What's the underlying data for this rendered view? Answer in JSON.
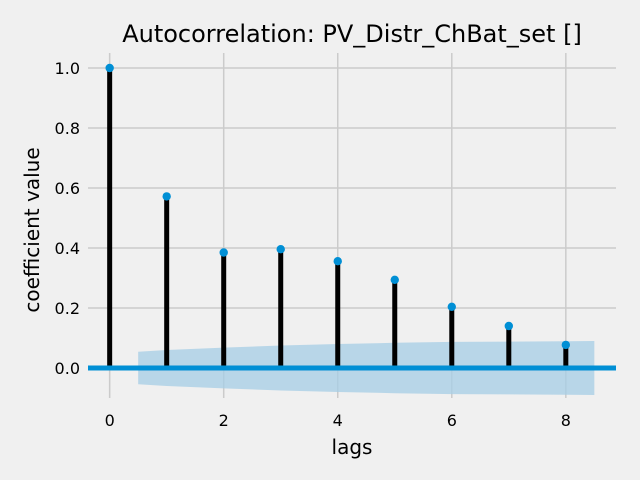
{
  "chart_data": {
    "type": "stem",
    "title": "Autocorrelation: PV_Distr_ChBat_set []",
    "xlabel": "lags",
    "ylabel": "coefficient value",
    "xlim": [
      -0.38,
      8.88
    ],
    "ylim": [
      -0.1,
      1.05
    ],
    "xticks": [
      0,
      2,
      4,
      6,
      8
    ],
    "xtick_labels": [
      "0",
      "2",
      "4",
      "6",
      "8"
    ],
    "yticks": [
      0.0,
      0.2,
      0.4,
      0.6,
      0.8,
      1.0
    ],
    "ytick_labels": [
      "0.0",
      "0.2",
      "0.4",
      "0.6",
      "0.8",
      "1.0"
    ],
    "grid": true,
    "lags": [
      0,
      1,
      2,
      3,
      4,
      5,
      6,
      7,
      8
    ],
    "values": [
      1.0,
      0.572,
      0.385,
      0.396,
      0.356,
      0.294,
      0.204,
      0.14,
      0.077
    ],
    "confidence_band": {
      "x": [
        0.5,
        1,
        2,
        3,
        4,
        5,
        6,
        7,
        8,
        8.5
      ],
      "upper": [
        0.054,
        0.06,
        0.068,
        0.075,
        0.08,
        0.084,
        0.087,
        0.088,
        0.089,
        0.09
      ],
      "lower": [
        -0.054,
        -0.06,
        -0.068,
        -0.075,
        -0.08,
        -0.084,
        -0.087,
        -0.088,
        -0.089,
        -0.09
      ]
    },
    "colors": {
      "background": "#f0f0f0",
      "grid": "#cbcbcb",
      "stem": "#000000",
      "marker": "#008fd5",
      "baseline": "#008fd5",
      "band": "#a6cde6"
    }
  }
}
